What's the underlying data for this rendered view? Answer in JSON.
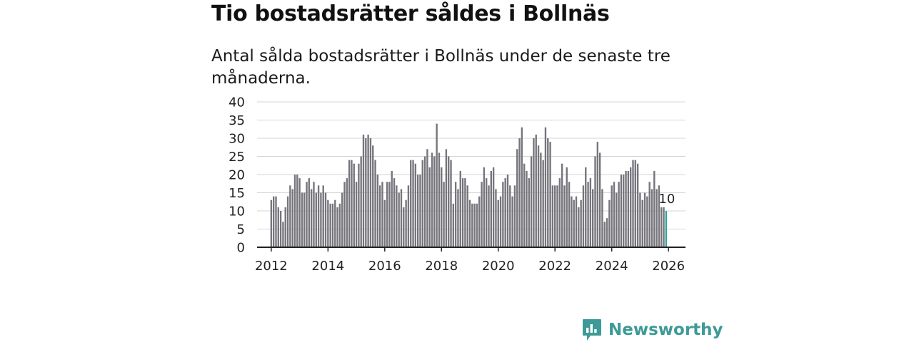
{
  "title": "Tio bostadsrätter såldes i Bollnäs",
  "subtitle": "Antal sålda bostadsrätter i Bollnäs under de senaste tre månaderna.",
  "brand": {
    "name": "Newsworthy",
    "logo_icon": "bar-chart-speech-bubble-icon",
    "color": "#3d9a96"
  },
  "colors": {
    "bars": "#76757c",
    "highlight": "#28a89f",
    "grid": "#d5d5d5",
    "axis": "#222222"
  },
  "chart_data": {
    "type": "bar",
    "title": "Tio bostadsrätter såldes i Bollnäs",
    "xlabel": "",
    "ylabel": "",
    "ylim": [
      0,
      40
    ],
    "yticks": [
      0,
      5,
      10,
      15,
      20,
      25,
      30,
      35,
      40
    ],
    "xlim": [
      2011.5,
      2026.6
    ],
    "xticks": [
      2012,
      2014,
      2016,
      2018,
      2020,
      2022,
      2024,
      2026
    ],
    "grid": true,
    "start": {
      "year": 2012,
      "month": 1
    },
    "frequency": "monthly",
    "values": [
      13,
      14,
      14,
      11,
      10,
      7,
      11,
      14,
      17,
      16,
      20,
      20,
      19,
      15,
      15,
      18,
      19,
      16,
      18,
      15,
      17,
      15,
      17,
      15,
      13,
      12,
      12,
      13,
      11,
      12,
      15,
      18,
      19,
      24,
      24,
      23,
      18,
      23,
      25,
      31,
      30,
      31,
      30,
      28,
      24,
      20,
      17,
      18,
      13,
      18,
      18,
      21,
      19,
      17,
      15,
      16,
      11,
      13,
      17,
      24,
      24,
      23,
      20,
      20,
      24,
      25,
      27,
      22,
      26,
      25,
      34,
      26,
      22,
      18,
      27,
      25,
      24,
      12,
      18,
      16,
      21,
      19,
      19,
      17,
      13,
      12,
      12,
      12,
      14,
      18,
      22,
      19,
      17,
      21,
      22,
      16,
      13,
      14,
      18,
      19,
      20,
      17,
      14,
      17,
      27,
      30,
      33,
      23,
      21,
      19,
      25,
      30,
      31,
      28,
      26,
      24,
      33,
      30,
      29,
      17,
      17,
      17,
      19,
      23,
      17,
      22,
      18,
      14,
      13,
      14,
      11,
      13,
      17,
      22,
      18,
      19,
      16,
      25,
      29,
      26,
      16,
      7,
      8,
      13,
      17,
      18,
      15,
      18,
      20,
      20,
      21,
      21,
      22,
      24,
      24,
      23,
      15,
      13,
      15,
      14,
      18,
      16,
      21,
      16,
      17,
      11,
      11,
      10
    ],
    "highlight_last": true,
    "annotations": [
      {
        "label": "10",
        "target": "last"
      }
    ]
  }
}
